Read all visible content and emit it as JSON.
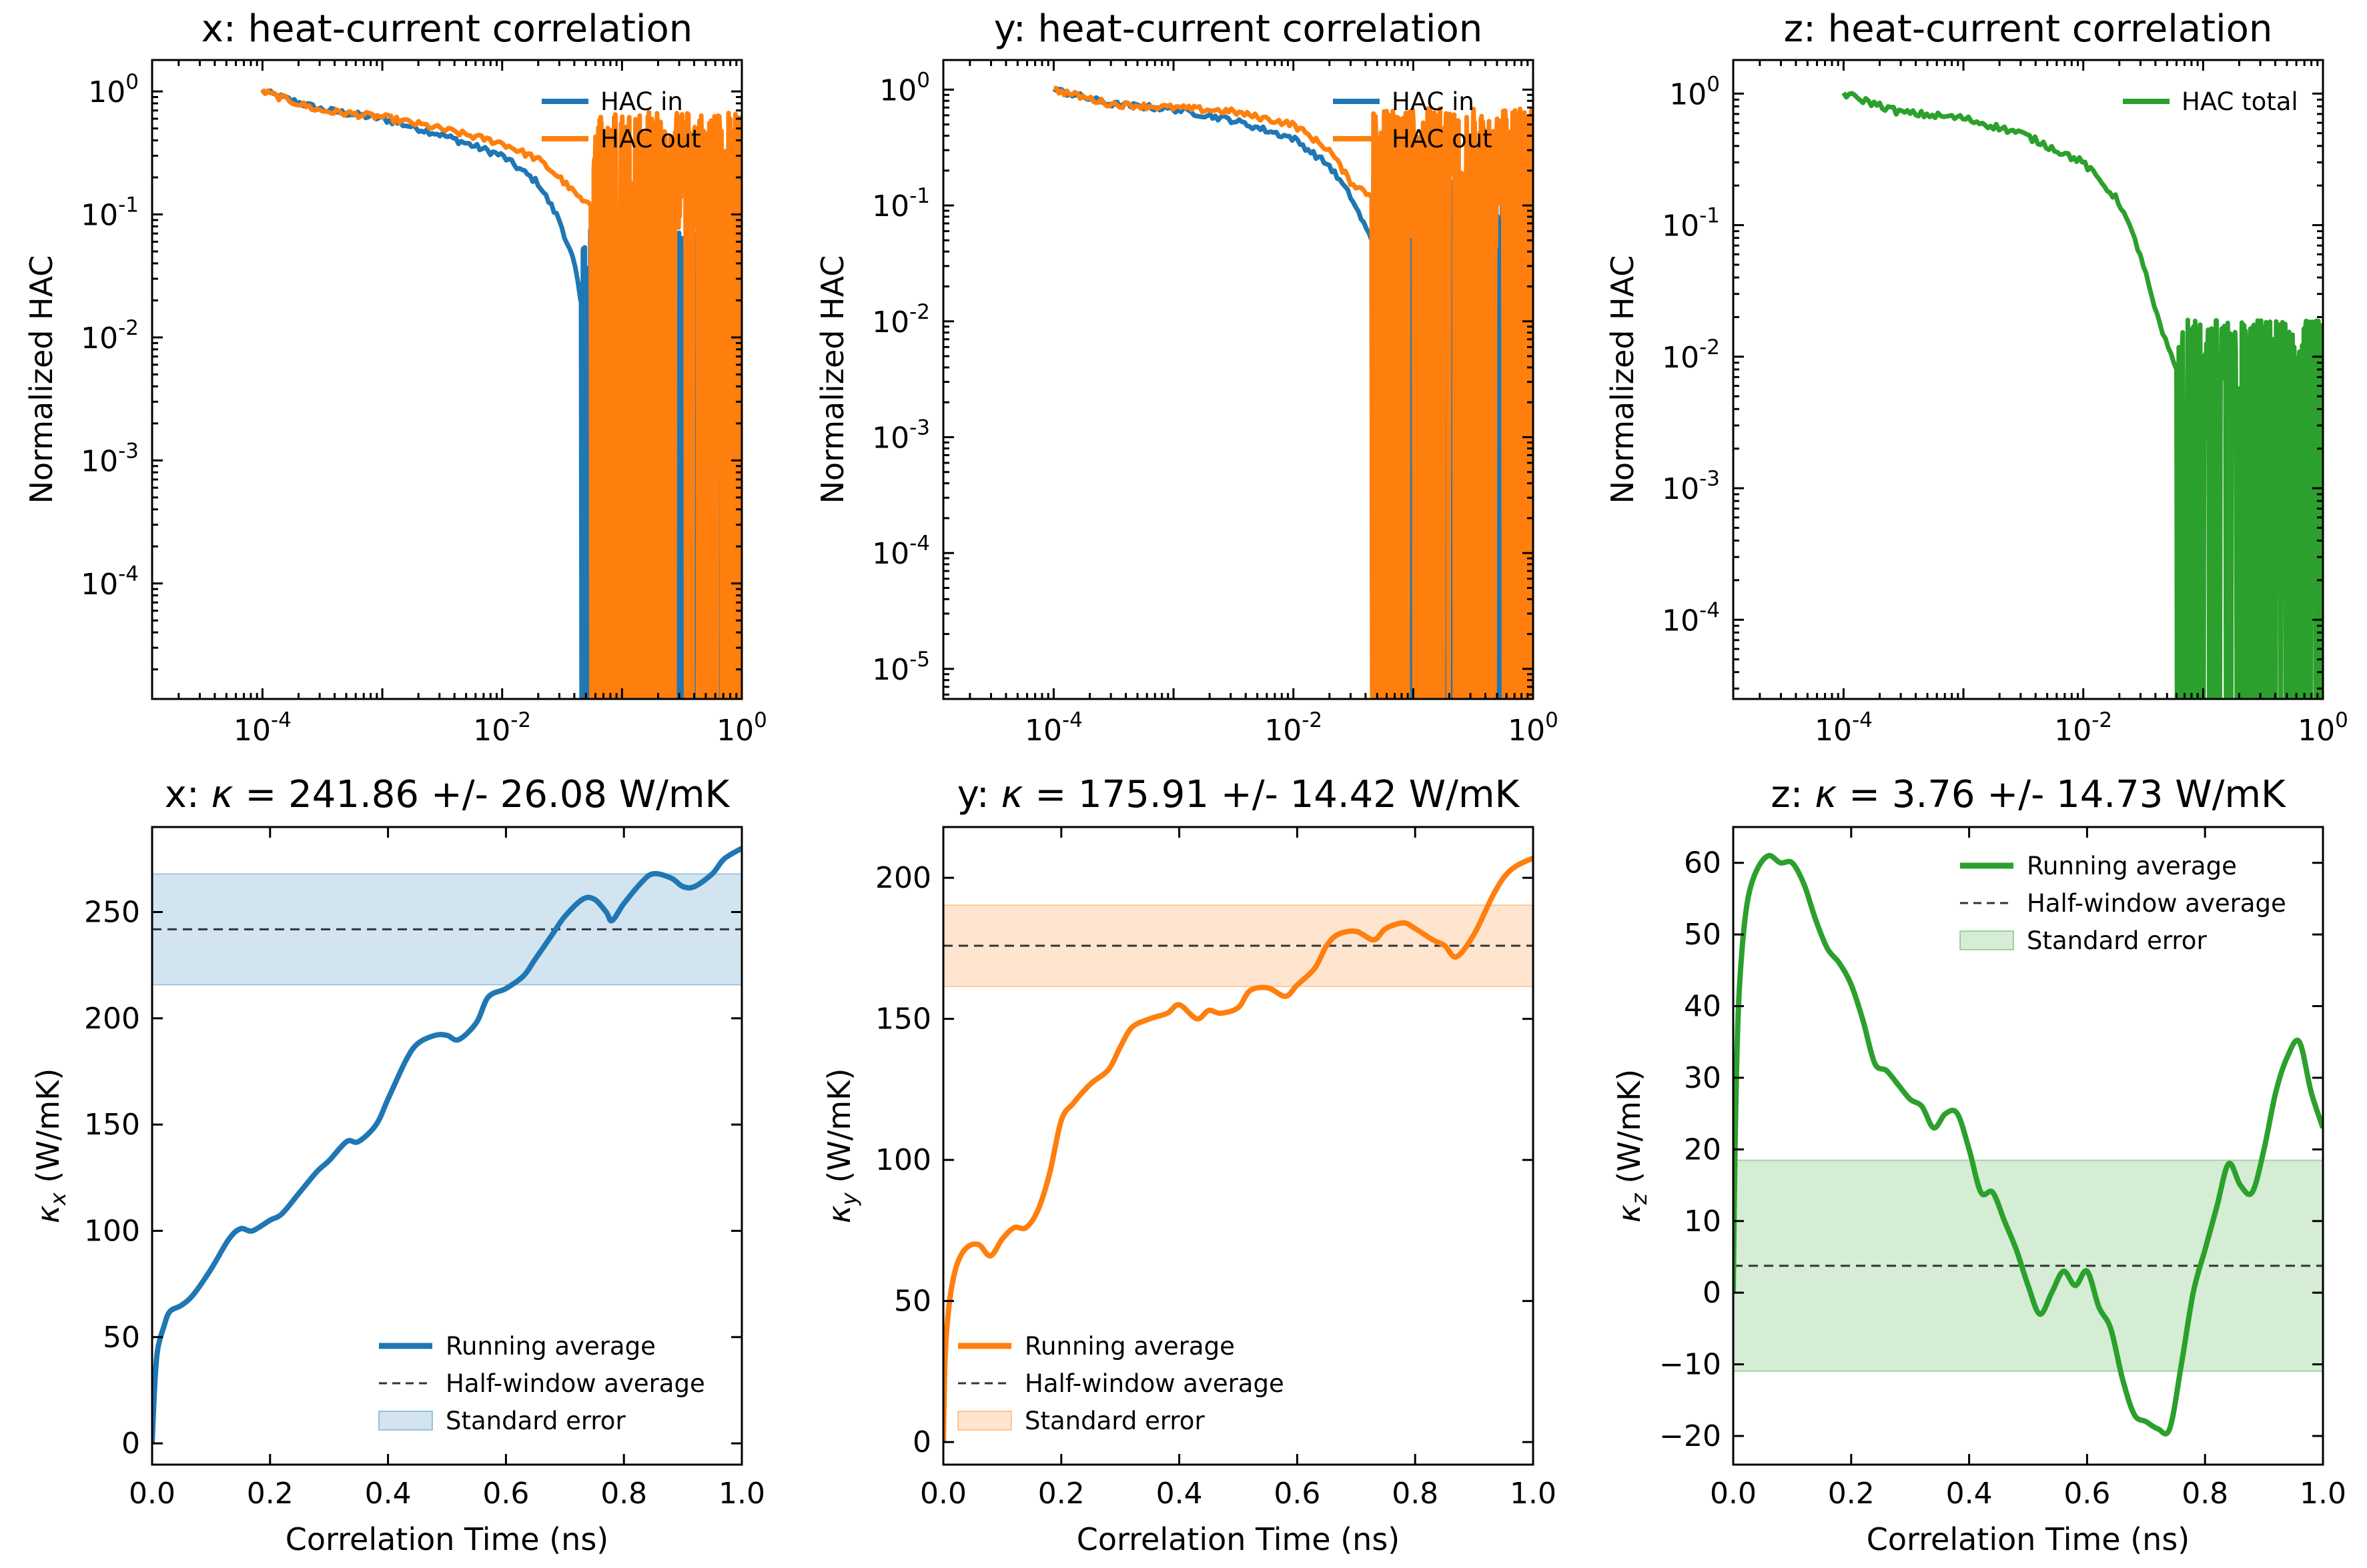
{
  "colors": {
    "blue": "#1f77b4",
    "orange": "#ff7f0e",
    "green": "#2ca02c",
    "dash": "#333333"
  },
  "chart_data": [
    {
      "id": "hac-x",
      "type": "line",
      "title": "x: heat-current correlation",
      "xlabel": "",
      "ylabel": "Normalized HAC",
      "xscale": "log",
      "yscale": "log",
      "xlim": [
        1.2e-05,
        1.0
      ],
      "ylim": [
        1.15e-05,
        1.8
      ],
      "xticks": [
        {
          "exp": "-4",
          "v": 0.0001
        },
        {
          "exp": "-2",
          "v": 0.01
        },
        {
          "exp": "0",
          "v": 1
        }
      ],
      "yticks": [
        {
          "exp": "-4",
          "v": 0.0001
        },
        {
          "exp": "-3",
          "v": 0.001
        },
        {
          "exp": "-2",
          "v": 0.01
        },
        {
          "exp": "-1",
          "v": 0.1
        },
        {
          "exp": "0",
          "v": 1
        }
      ],
      "legend_position": "top-right",
      "series": [
        {
          "name": "HAC in",
          "color": "#1f77b4",
          "x": [
            0.0001,
            0.0003,
            0.001,
            0.003,
            0.01,
            0.02,
            0.03,
            0.04,
            0.045
          ],
          "y": [
            1.0,
            0.72,
            0.6,
            0.45,
            0.3,
            0.18,
            0.09,
            0.04,
            0.02
          ],
          "noise_from": 0.045
        },
        {
          "name": "HAC out",
          "color": "#ff7f0e",
          "x": [
            0.0001,
            0.0003,
            0.001,
            0.003,
            0.01,
            0.02,
            0.03,
            0.05
          ],
          "y": [
            1.0,
            0.7,
            0.62,
            0.5,
            0.38,
            0.28,
            0.2,
            0.12
          ],
          "noise_from": 0.055
        }
      ]
    },
    {
      "id": "hac-y",
      "type": "line",
      "title": "y: heat-current correlation",
      "xlabel": "",
      "ylabel": "Normalized HAC",
      "xscale": "log",
      "yscale": "log",
      "xlim": [
        1.2e-05,
        1.0
      ],
      "ylim": [
        5.5e-06,
        1.8
      ],
      "xticks": [
        {
          "exp": "-4",
          "v": 0.0001
        },
        {
          "exp": "-2",
          "v": 0.01
        },
        {
          "exp": "0",
          "v": 1
        }
      ],
      "yticks": [
        {
          "exp": "-5",
          "v": 1e-05
        },
        {
          "exp": "-4",
          "v": 0.0001
        },
        {
          "exp": "-3",
          "v": 0.001
        },
        {
          "exp": "-2",
          "v": 0.01
        },
        {
          "exp": "-1",
          "v": 0.1
        },
        {
          "exp": "0",
          "v": 1
        }
      ],
      "legend_position": "top-right",
      "series": [
        {
          "name": "HAC in",
          "color": "#1f77b4",
          "x": [
            0.0001,
            0.0003,
            0.001,
            0.003,
            0.01,
            0.02,
            0.03,
            0.045
          ],
          "y": [
            1.0,
            0.75,
            0.68,
            0.55,
            0.38,
            0.22,
            0.12,
            0.05
          ],
          "noise_from": 0.045
        },
        {
          "name": "HAC out",
          "color": "#ff7f0e",
          "x": [
            0.0001,
            0.0003,
            0.001,
            0.003,
            0.01,
            0.02,
            0.03,
            0.045
          ],
          "y": [
            1.0,
            0.75,
            0.7,
            0.65,
            0.5,
            0.3,
            0.16,
            0.12
          ],
          "noise_from": 0.045
        }
      ]
    },
    {
      "id": "hac-z",
      "type": "line",
      "title": "z: heat-current correlation",
      "xlabel": "",
      "ylabel": "Normalized HAC",
      "xscale": "log",
      "yscale": "log",
      "xlim": [
        1.2e-05,
        1.0
      ],
      "ylim": [
        2.5e-05,
        1.8
      ],
      "xticks": [
        {
          "exp": "-4",
          "v": 0.0001
        },
        {
          "exp": "-2",
          "v": 0.01
        },
        {
          "exp": "0",
          "v": 1
        }
      ],
      "yticks": [
        {
          "exp": "-4",
          "v": 0.0001
        },
        {
          "exp": "-3",
          "v": 0.001
        },
        {
          "exp": "-2",
          "v": 0.01
        },
        {
          "exp": "-1",
          "v": 0.1
        },
        {
          "exp": "0",
          "v": 1
        }
      ],
      "legend_position": "top-right",
      "series": [
        {
          "name": "HAC total",
          "color": "#2ca02c",
          "x": [
            0.0001,
            0.0003,
            0.001,
            0.003,
            0.01,
            0.02,
            0.03,
            0.04,
            0.05,
            0.06,
            0.07
          ],
          "y": [
            1.0,
            0.72,
            0.65,
            0.5,
            0.3,
            0.15,
            0.06,
            0.022,
            0.012,
            0.008,
            0.005
          ],
          "noise_from": 0.06
        }
      ]
    },
    {
      "id": "kappa-x",
      "type": "line",
      "title_prefix": "x: ",
      "title_symbol": "κ",
      "title_value": " = 241.86 +/- 26.08 W/mK",
      "xlabel": "Correlation Time (ns)",
      "ylabel_symbol": "κ",
      "ylabel_sub": "x",
      "ylabel_unit": " (W/mK)",
      "xlim": [
        0.0,
        1.0
      ],
      "ylim": [
        -10,
        290
      ],
      "xticks": [
        "0.0",
        "0.2",
        "0.4",
        "0.6",
        "0.8",
        "1.0"
      ],
      "yticks": [
        "0",
        "50",
        "100",
        "150",
        "200",
        "250"
      ],
      "legend_position": "lower-right",
      "legend_entries": [
        "Running average",
        "Half-window average",
        "Standard error"
      ],
      "mean": 241.86,
      "stderr": 26.08,
      "color": "#1f77b4",
      "x": [
        0,
        0.005,
        0.01,
        0.02,
        0.03,
        0.05,
        0.07,
        0.1,
        0.13,
        0.15,
        0.17,
        0.2,
        0.22,
        0.25,
        0.28,
        0.3,
        0.33,
        0.35,
        0.38,
        0.4,
        0.43,
        0.45,
        0.48,
        0.5,
        0.52,
        0.55,
        0.57,
        0.6,
        0.63,
        0.65,
        0.68,
        0.7,
        0.73,
        0.75,
        0.77,
        0.78,
        0.8,
        0.83,
        0.85,
        0.88,
        0.9,
        0.92,
        0.95,
        0.97,
        1.0
      ],
      "y": [
        0,
        30,
        45,
        55,
        62,
        65,
        70,
        82,
        96,
        101,
        100,
        105,
        108,
        118,
        128,
        133,
        142,
        142,
        150,
        162,
        180,
        188,
        192,
        192,
        190,
        198,
        210,
        214,
        220,
        228,
        240,
        248,
        256,
        256,
        250,
        246,
        254,
        264,
        268,
        266,
        262,
        262,
        268,
        275,
        280
      ]
    },
    {
      "id": "kappa-y",
      "type": "line",
      "title_prefix": "y: ",
      "title_symbol": "κ",
      "title_value": " = 175.91 +/- 14.42 W/mK",
      "xlabel": "Correlation Time (ns)",
      "ylabel_symbol": "κ",
      "ylabel_sub": "y",
      "ylabel_unit": " (W/mK)",
      "xlim": [
        0.0,
        1.0
      ],
      "ylim": [
        -8,
        218
      ],
      "xticks": [
        "0.0",
        "0.2",
        "0.4",
        "0.6",
        "0.8",
        "1.0"
      ],
      "yticks": [
        "0",
        "50",
        "100",
        "150",
        "200"
      ],
      "legend_position": "lower-left",
      "legend_entries": [
        "Running average",
        "Half-window average",
        "Standard error"
      ],
      "mean": 175.91,
      "stderr": 14.42,
      "color": "#ff7f0e",
      "x": [
        0,
        0.003,
        0.008,
        0.015,
        0.025,
        0.04,
        0.06,
        0.08,
        0.1,
        0.12,
        0.14,
        0.16,
        0.18,
        0.2,
        0.22,
        0.25,
        0.28,
        0.3,
        0.32,
        0.35,
        0.38,
        0.4,
        0.43,
        0.45,
        0.47,
        0.5,
        0.52,
        0.55,
        0.58,
        0.6,
        0.63,
        0.65,
        0.67,
        0.7,
        0.73,
        0.75,
        0.78,
        0.8,
        0.83,
        0.85,
        0.87,
        0.9,
        0.93,
        0.95,
        0.97,
        1.0
      ],
      "y": [
        0,
        30,
        45,
        56,
        64,
        69,
        70,
        66,
        72,
        76,
        76,
        82,
        95,
        114,
        120,
        127,
        132,
        140,
        147,
        150,
        152,
        155,
        150,
        153,
        152,
        154,
        160,
        161,
        158,
        162,
        168,
        176,
        180,
        181,
        178,
        182,
        184,
        182,
        178,
        176,
        172,
        180,
        193,
        200,
        204,
        207
      ]
    },
    {
      "id": "kappa-z",
      "type": "line",
      "title_prefix": "z: ",
      "title_symbol": "κ",
      "title_value": " = 3.76 +/- 14.73 W/mK",
      "xlabel": "Correlation Time (ns)",
      "ylabel_symbol": "κ",
      "ylabel_sub": "z",
      "ylabel_unit": " (W/mK)",
      "xlim": [
        0.0,
        1.0
      ],
      "ylim": [
        -24,
        65
      ],
      "xticks": [
        "0.0",
        "0.2",
        "0.4",
        "0.6",
        "0.8",
        "1.0"
      ],
      "yticks": [
        "−20",
        "−10",
        "0",
        "10",
        "20",
        "30",
        "40",
        "50",
        "60"
      ],
      "legend_position": "top-right",
      "legend_entries": [
        "Running average",
        "Half-window average",
        "Standard error"
      ],
      "mean": 3.76,
      "stderr": 14.73,
      "color": "#2ca02c",
      "x": [
        0,
        0.003,
        0.008,
        0.015,
        0.025,
        0.04,
        0.06,
        0.08,
        0.1,
        0.12,
        0.14,
        0.16,
        0.18,
        0.2,
        0.22,
        0.24,
        0.26,
        0.28,
        0.3,
        0.32,
        0.34,
        0.36,
        0.38,
        0.4,
        0.42,
        0.44,
        0.46,
        0.48,
        0.5,
        0.52,
        0.54,
        0.56,
        0.58,
        0.6,
        0.62,
        0.64,
        0.66,
        0.68,
        0.7,
        0.72,
        0.74,
        0.76,
        0.78,
        0.8,
        0.82,
        0.84,
        0.86,
        0.88,
        0.9,
        0.92,
        0.94,
        0.96,
        0.98,
        1.0
      ],
      "y": [
        0,
        20,
        38,
        48,
        55,
        59,
        61,
        60,
        60,
        57,
        52,
        48,
        46,
        43,
        38,
        32,
        31,
        29,
        27,
        26,
        23,
        25,
        25,
        20,
        14,
        14,
        10,
        6,
        1,
        -3,
        0,
        3,
        1,
        3,
        -2,
        -5,
        -12,
        -17,
        -18,
        -19,
        -19,
        -10,
        0,
        6,
        12,
        18,
        15,
        14,
        20,
        28,
        33,
        35,
        28,
        23
      ]
    }
  ]
}
